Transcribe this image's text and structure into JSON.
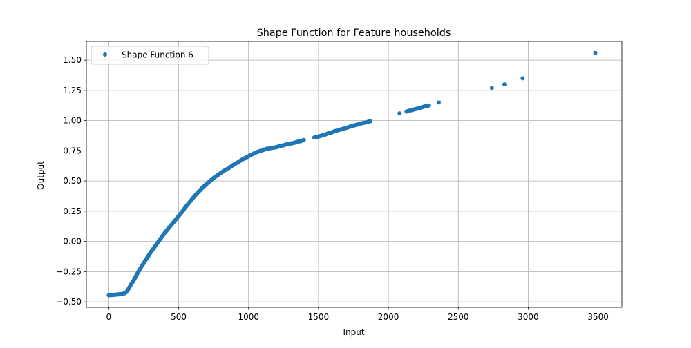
{
  "chart_data": {
    "type": "scatter",
    "title": "Shape Function for Feature households",
    "xlabel": "Input",
    "ylabel": "Output",
    "xlim": [
      -160,
      3670
    ],
    "ylim": [
      -0.545,
      1.655
    ],
    "xticks": [
      0,
      500,
      1000,
      1500,
      2000,
      2500,
      3000,
      3500
    ],
    "xtick_labels": [
      "0",
      "500",
      "1000",
      "1500",
      "2000",
      "2500",
      "3000",
      "3500"
    ],
    "yticks": [
      -0.5,
      -0.25,
      0.0,
      0.25,
      0.5,
      0.75,
      1.0,
      1.25,
      1.5
    ],
    "ytick_labels": [
      "−0.50",
      "−0.25",
      "0.00",
      "0.25",
      "0.50",
      "0.75",
      "1.00",
      "1.25",
      "1.50"
    ],
    "grid": true,
    "legend_position": "top-left",
    "series": [
      {
        "name": "Shape Function 6",
        "color": "#1f77b4",
        "points": [
          [
            0,
            -0.445
          ],
          [
            25,
            -0.443
          ],
          [
            50,
            -0.44
          ],
          [
            75,
            -0.437
          ],
          [
            100,
            -0.434
          ],
          [
            115,
            -0.428
          ],
          [
            125,
            -0.42
          ],
          [
            135,
            -0.405
          ],
          [
            145,
            -0.385
          ],
          [
            160,
            -0.355
          ],
          [
            175,
            -0.33
          ],
          [
            200,
            -0.275
          ],
          [
            225,
            -0.225
          ],
          [
            250,
            -0.18
          ],
          [
            275,
            -0.135
          ],
          [
            300,
            -0.09
          ],
          [
            325,
            -0.05
          ],
          [
            350,
            -0.01
          ],
          [
            375,
            0.03
          ],
          [
            400,
            0.07
          ],
          [
            425,
            0.105
          ],
          [
            450,
            0.14
          ],
          [
            475,
            0.175
          ],
          [
            500,
            0.21
          ],
          [
            525,
            0.245
          ],
          [
            550,
            0.285
          ],
          [
            575,
            0.32
          ],
          [
            600,
            0.355
          ],
          [
            625,
            0.39
          ],
          [
            650,
            0.42
          ],
          [
            675,
            0.45
          ],
          [
            700,
            0.475
          ],
          [
            725,
            0.5
          ],
          [
            750,
            0.525
          ],
          [
            775,
            0.545
          ],
          [
            800,
            0.565
          ],
          [
            825,
            0.585
          ],
          [
            850,
            0.6
          ],
          [
            875,
            0.62
          ],
          [
            900,
            0.64
          ],
          [
            925,
            0.655
          ],
          [
            950,
            0.675
          ],
          [
            975,
            0.69
          ],
          [
            1000,
            0.705
          ],
          [
            1025,
            0.72
          ],
          [
            1050,
            0.735
          ],
          [
            1075,
            0.745
          ],
          [
            1100,
            0.755
          ],
          [
            1125,
            0.765
          ],
          [
            1150,
            0.77
          ],
          [
            1175,
            0.775
          ],
          [
            1200,
            0.78
          ],
          [
            1225,
            0.79
          ],
          [
            1250,
            0.795
          ],
          [
            1275,
            0.805
          ],
          [
            1300,
            0.81
          ],
          [
            1325,
            0.815
          ],
          [
            1350,
            0.825
          ],
          [
            1375,
            0.83
          ],
          [
            1395,
            0.84
          ],
          [
            1470,
            0.86
          ],
          [
            1490,
            0.865
          ],
          [
            1520,
            0.875
          ],
          [
            1550,
            0.885
          ],
          [
            1570,
            0.895
          ],
          [
            1590,
            0.9
          ],
          [
            1610,
            0.91
          ],
          [
            1640,
            0.92
          ],
          [
            1670,
            0.93
          ],
          [
            1700,
            0.94
          ],
          [
            1720,
            0.948
          ],
          [
            1750,
            0.958
          ],
          [
            1780,
            0.968
          ],
          [
            1810,
            0.978
          ],
          [
            1840,
            0.985
          ],
          [
            1870,
            0.995
          ],
          [
            2080,
            1.06
          ],
          [
            2130,
            1.075
          ],
          [
            2150,
            1.082
          ],
          [
            2170,
            1.088
          ],
          [
            2200,
            1.097
          ],
          [
            2240,
            1.11
          ],
          [
            2260,
            1.118
          ],
          [
            2290,
            1.125
          ],
          [
            2360,
            1.15
          ],
          [
            2740,
            1.27
          ],
          [
            2830,
            1.3
          ],
          [
            2960,
            1.35
          ],
          [
            3480,
            1.56
          ]
        ]
      }
    ]
  }
}
